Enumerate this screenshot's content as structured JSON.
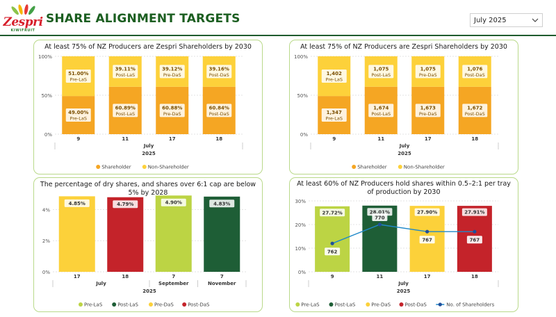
{
  "header": {
    "title": "SHARE ALIGNMENT TARGETS",
    "logo_text": "Zespri",
    "logo_subtext": "KIWIFRUIT",
    "date_filter": "July 2025"
  },
  "colors": {
    "shareholder": "#f5a623",
    "non_shareholder": "#fdd13a",
    "pre_las": "#bcd444",
    "post_las": "#1e5e36",
    "pre_das": "#fcd13a",
    "post_das": "#c4232a",
    "line": "#1f88c9",
    "marker": "#1f4f9a",
    "label_text": "#7a4f00"
  },
  "chart_data": [
    {
      "id": "c1",
      "type": "bar",
      "stacked": "percent",
      "title": "At least 75% of NZ Producers are Zespri Shareholders by 2030",
      "categories": [
        "9",
        "11",
        "17",
        "18"
      ],
      "x_group_month": "July",
      "x_group_year": "2025",
      "yticks": [
        "100%",
        "50%",
        "0%"
      ],
      "ylim": [
        0,
        100
      ],
      "stages": [
        "Pre-LaS",
        "Post-LaS",
        "Pre-DaS",
        "Post-DaS"
      ],
      "series": [
        {
          "name": "Shareholder",
          "values": [
            49.0,
            60.89,
            60.88,
            60.84
          ],
          "labels": [
            "49.00%",
            "60.89%",
            "60.88%",
            "60.84%"
          ]
        },
        {
          "name": "Non-Shareholder",
          "values": [
            51.0,
            39.11,
            39.12,
            39.16
          ],
          "labels": [
            "51.00%",
            "39.11%",
            "39.12%",
            "39.16%"
          ]
        }
      ],
      "legend": "bottom-center"
    },
    {
      "id": "c2",
      "type": "bar",
      "stacked": "percent",
      "title": "At least 75% of NZ Producers are Zespri Shareholders by 2030",
      "categories": [
        "9",
        "11",
        "17",
        "18"
      ],
      "x_group_month": "July",
      "x_group_year": "2025",
      "yticks": [
        "100%",
        "50%",
        "0%"
      ],
      "ylim": [
        0,
        100
      ],
      "stages": [
        "Pre-LaS",
        "Post-LaS",
        "Pre-DaS",
        "Post-DaS"
      ],
      "series": [
        {
          "name": "Shareholder",
          "values": [
            1347,
            1674,
            1673,
            1672
          ],
          "labels": [
            "1,347",
            "1,674",
            "1,673",
            "1,672"
          ]
        },
        {
          "name": "Non-Shareholder",
          "values": [
            1402,
            1075,
            1075,
            1076
          ],
          "labels": [
            "1,402",
            "1,075",
            "1,075",
            "1,076"
          ]
        }
      ],
      "legend": "bottom-center"
    },
    {
      "id": "c3",
      "type": "bar",
      "title": "The percentage of dry shares, and shares over 6:1 cap are below 5% by 2028",
      "categories": [
        "17",
        "18",
        "7",
        "7"
      ],
      "months": [
        "July",
        "July",
        "September",
        "November"
      ],
      "x_group_year": "2025",
      "yticks": [
        "4%",
        "2%",
        "0%"
      ],
      "ylim": [
        0,
        5
      ],
      "values": [
        4.85,
        4.79,
        4.9,
        4.83
      ],
      "labels": [
        "4.85%",
        "4.79%",
        "4.90%",
        "4.83%"
      ],
      "bar_series": [
        "Pre-DaS",
        "Post-DaS",
        "Pre-LaS",
        "Post-LaS"
      ],
      "legend_entries": [
        "Pre-LaS",
        "Post-LaS",
        "Pre-DaS",
        "Post-DaS"
      ],
      "legend": "bottom-center"
    },
    {
      "id": "c4",
      "type": "bar",
      "title": "At least 60% of NZ Producers hold shares within 0.5–2:1 per tray of production by 2030",
      "categories": [
        "9",
        "11",
        "17",
        "18"
      ],
      "x_group_month": "July",
      "x_group_year": "2025",
      "yticks": [
        "30%",
        "20%",
        "10%",
        "0%"
      ],
      "ylim": [
        0,
        30
      ],
      "values": [
        27.72,
        28.01,
        27.9,
        27.91
      ],
      "labels": [
        "27.72%",
        "28.01%",
        "27.90%",
        "27.91%"
      ],
      "bar_series": [
        "Pre-LaS",
        "Post-LaS",
        "Pre-DaS",
        "Post-DaS"
      ],
      "line": {
        "name": "No. of Shareholders",
        "values": [
          762,
          770,
          767,
          767
        ],
        "labels": [
          "762",
          "770",
          "767",
          "767"
        ],
        "ylim": [
          750,
          780
        ]
      },
      "legend_entries": [
        "Pre-LaS",
        "Post-LaS",
        "Pre-DaS",
        "Post-DaS",
        "No. of Shareholders"
      ],
      "legend": "bottom-center"
    }
  ]
}
